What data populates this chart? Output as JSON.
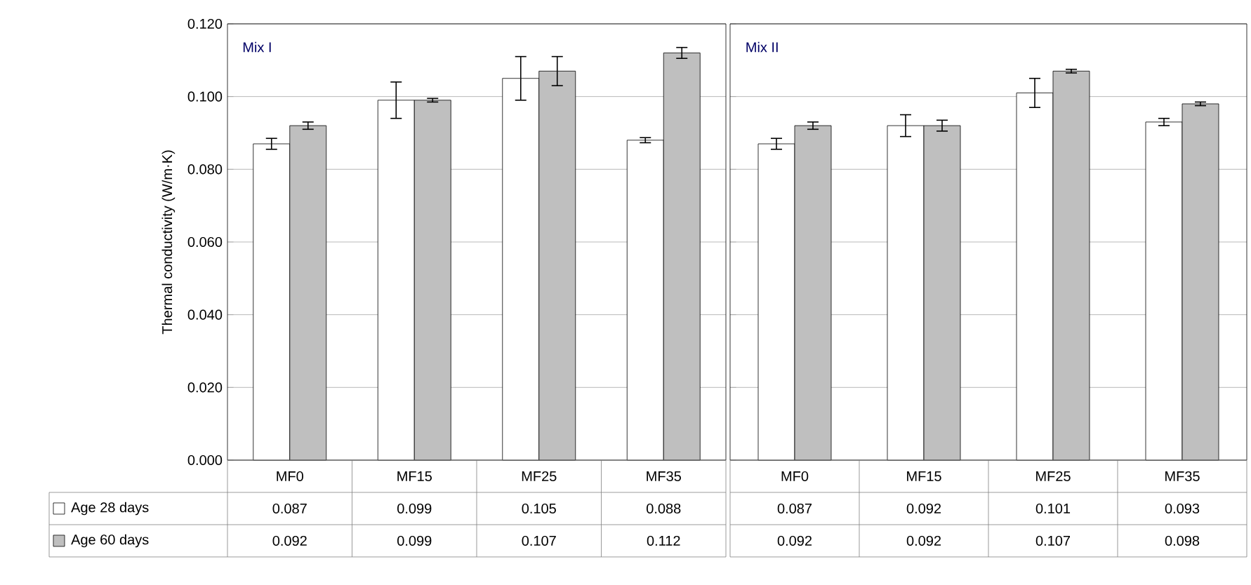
{
  "chart_data": [
    {
      "type": "bar",
      "title": "Mix I",
      "ylabel": "Thermal conductivity (W/m·K)",
      "categories": [
        "MF0",
        "MF15",
        "MF25",
        "MF35"
      ],
      "series": [
        {
          "name": "Age 28 days",
          "color": "#ffffff",
          "values": [
            0.087,
            0.099,
            0.105,
            0.088
          ],
          "value_labels": [
            "0.087",
            "0.099",
            "0.105",
            "0.088"
          ],
          "errors": [
            0.0015,
            0.005,
            0.006,
            0.0007
          ]
        },
        {
          "name": "Age 60 days",
          "color": "#bfbfbf",
          "values": [
            0.092,
            0.099,
            0.107,
            0.112
          ],
          "value_labels": [
            "0.092",
            "0.099",
            "0.107",
            "0.112"
          ],
          "errors": [
            0.001,
            0.0005,
            0.004,
            0.0015
          ]
        }
      ],
      "ylim": [
        0,
        0.12
      ],
      "yticks": [
        {
          "value": 0,
          "label": "0.000"
        },
        {
          "value": 0.02,
          "label": "0.020"
        },
        {
          "value": 0.04,
          "label": "0.040"
        },
        {
          "value": 0.06,
          "label": "0.060"
        },
        {
          "value": 0.08,
          "label": "0.080"
        },
        {
          "value": 0.1,
          "label": "0.100"
        },
        {
          "value": 0.12,
          "label": "0.120"
        }
      ],
      "grid": "y",
      "legend": "bottom left"
    },
    {
      "type": "bar",
      "title": "Mix II",
      "categories": [
        "MF0",
        "MF15",
        "MF25",
        "MF35"
      ],
      "series": [
        {
          "color": "#ffffff",
          "values": [
            0.087,
            0.092,
            0.101,
            0.093
          ],
          "value_labels": [
            "0.087",
            "0.092",
            "0.101",
            "0.093"
          ],
          "errors": [
            0.0015,
            0.003,
            0.004,
            0.001
          ]
        },
        {
          "color": "#bfbfbf",
          "values": [
            0.092,
            0.092,
            0.107,
            0.098
          ],
          "value_labels": [
            "0.092",
            "0.092",
            "0.107",
            "0.098"
          ],
          "errors": [
            0.001,
            0.0015,
            0.0005,
            0.0005
          ]
        }
      ],
      "ylim": [
        0,
        0.12
      ],
      "tick_labels": "x",
      "grid": "y"
    }
  ]
}
